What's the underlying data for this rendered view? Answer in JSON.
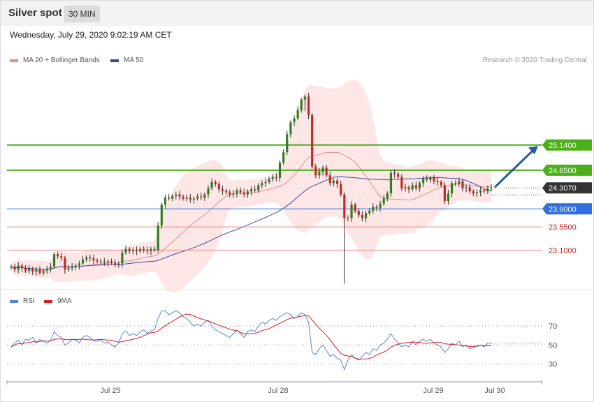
{
  "header": {
    "title": "Silver spot",
    "interval": "30 MIN",
    "datetime": "Wednesday, July 29, 2020 9:02:19 AM CET"
  },
  "legend": {
    "ma20": "MA 20 + Bollinger Bands",
    "ma50": "MA 50",
    "rsi": "RSI",
    "ma9": "9MA"
  },
  "copyright": "Research © 2020 Trading Central",
  "colors": {
    "up": "#2e7d1f",
    "down": "#c62828",
    "resistance": "#4caf1a",
    "pivot": "#2f6fde",
    "support": "#e88c8c",
    "current": "#333333",
    "band": "#fde2e2",
    "ma50": "#3b4a9e",
    "ma20": "#e29090",
    "rsi": "#5b86d6",
    "rsi_ma": "#d42020",
    "arrow": "#2a5a9a"
  },
  "chart_data": {
    "type": "candlestick",
    "price_axis": {
      "range": [
        22.4,
        26.6
      ]
    },
    "x_ticks": [
      "Jul 25",
      "Jul 28",
      "Jul 29",
      "Jul 30"
    ],
    "levels": [
      {
        "label": "25.1400",
        "value": 25.14,
        "role": "resistance"
      },
      {
        "label": "24.6500",
        "value": 24.65,
        "role": "resistance"
      },
      {
        "label": "23.9000",
        "value": 23.9,
        "role": "pivot"
      },
      {
        "label": "23.5500",
        "value": 23.55,
        "role": "support"
      },
      {
        "label": "23.1000",
        "value": 23.1,
        "role": "support"
      }
    ],
    "current_price": {
      "label": "24.3070",
      "value": 24.307
    },
    "forecast_arrow": {
      "from": 24.32,
      "to": 25.12
    },
    "close": [
      22.78,
      22.72,
      22.8,
      22.75,
      22.7,
      22.74,
      22.68,
      22.72,
      22.66,
      22.7,
      22.74,
      22.78,
      23.02,
      22.98,
      22.95,
      22.72,
      22.75,
      22.78,
      22.8,
      22.84,
      22.92,
      22.96,
      22.94,
      22.9,
      22.88,
      22.88,
      22.86,
      22.88,
      22.85,
      22.82,
      22.84,
      23.05,
      23.12,
      23.08,
      23.1,
      23.08,
      23.12,
      23.1,
      23.08,
      23.12,
      23.1,
      23.58,
      23.98,
      24.12,
      24.1,
      24.15,
      24.18,
      24.14,
      24.1,
      24.12,
      24.08,
      24.1,
      24.14,
      24.12,
      24.18,
      24.3,
      24.42,
      24.38,
      24.28,
      24.25,
      24.22,
      24.18,
      24.2,
      24.26,
      24.22,
      24.18,
      24.24,
      24.28,
      24.26,
      24.36,
      24.4,
      24.42,
      24.48,
      24.52,
      24.5,
      24.8,
      25.0,
      25.35,
      25.58,
      25.66,
      25.82,
      26.02,
      26.08,
      25.72,
      24.72,
      24.55,
      24.62,
      24.7,
      24.55,
      24.4,
      24.45,
      24.38,
      24.18,
      23.72,
      23.72,
      23.98,
      23.86,
      23.78,
      23.72,
      23.82,
      23.86,
      23.94,
      23.92,
      24.0,
      24.1,
      24.2,
      24.6,
      24.58,
      24.52,
      24.3,
      24.32,
      24.28,
      24.36,
      24.3,
      24.4,
      24.48,
      24.46,
      24.5,
      24.44,
      24.42,
      24.36,
      24.05,
      24.2,
      24.4,
      24.38,
      24.44,
      24.3,
      24.32,
      24.24,
      24.2,
      24.22,
      24.26,
      24.24,
      24.3,
      24.307
    ],
    "rsi": [
      48,
      52,
      55,
      50,
      56,
      55,
      58,
      52,
      56,
      54,
      52,
      55,
      64,
      60,
      58,
      50,
      52,
      56,
      55,
      52,
      58,
      60,
      58,
      55,
      54,
      55,
      52,
      53,
      50,
      48,
      52,
      62,
      65,
      60,
      62,
      60,
      64,
      66,
      62,
      65,
      66,
      78,
      86,
      86,
      82,
      84,
      86,
      84,
      80,
      78,
      74,
      70,
      72,
      70,
      74,
      76,
      70,
      66,
      64,
      62,
      60,
      58,
      62,
      66,
      62,
      58,
      64,
      66,
      64,
      70,
      74,
      72,
      76,
      78,
      76,
      80,
      82,
      84,
      82,
      78,
      80,
      84,
      82,
      74,
      42,
      40,
      46,
      50,
      44,
      38,
      40,
      36,
      34,
      24,
      34,
      40,
      36,
      34,
      38,
      42,
      40,
      46,
      44,
      50,
      52,
      56,
      62,
      56,
      52,
      48,
      50,
      48,
      54,
      50,
      54,
      56,
      54,
      56,
      52,
      50,
      48,
      42,
      46,
      52,
      50,
      54,
      48,
      50,
      46,
      48,
      48,
      50,
      48,
      52,
      52
    ],
    "rsi_axis": {
      "range": [
        20,
        90
      ],
      "ticks": [
        70,
        50,
        30
      ]
    }
  }
}
